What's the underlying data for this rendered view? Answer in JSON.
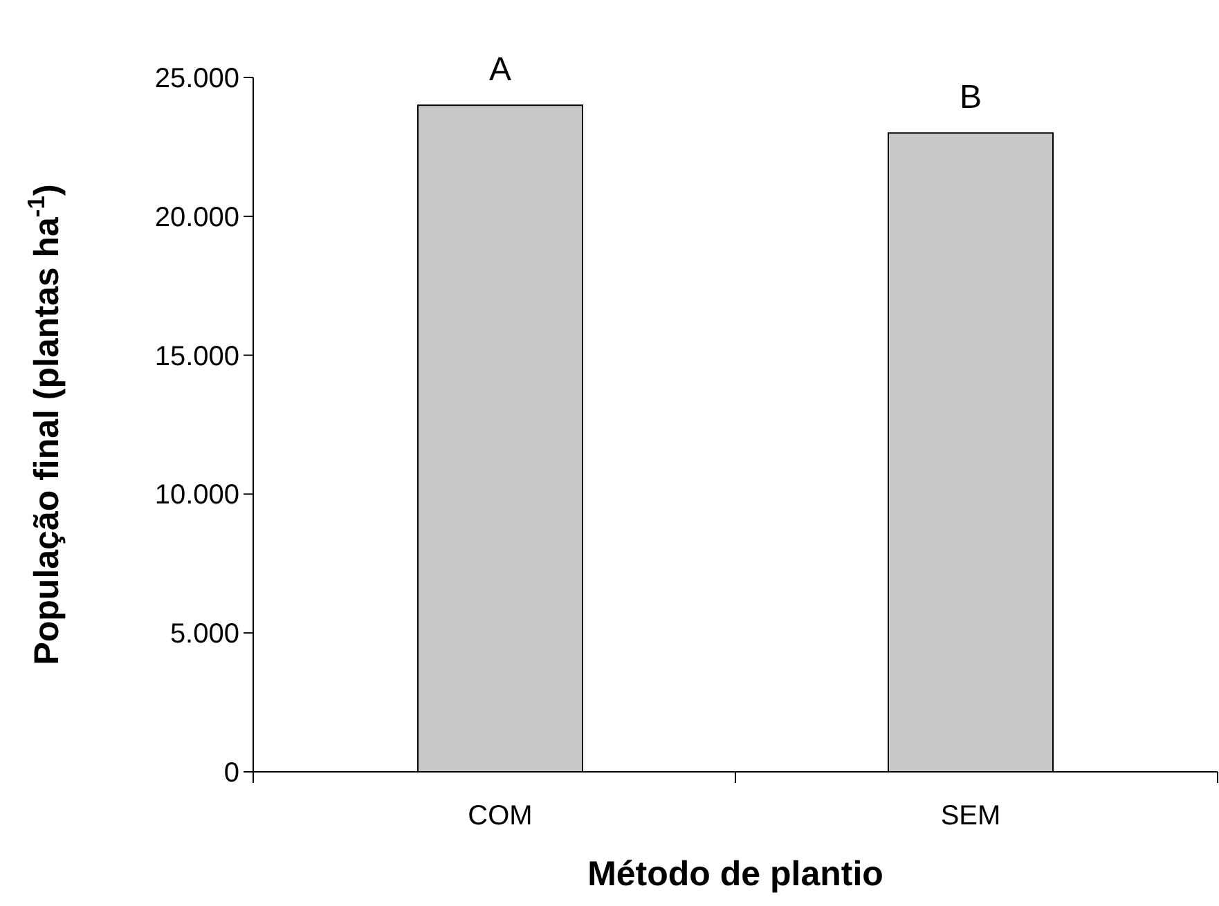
{
  "chart_data": {
    "type": "bar",
    "xlabel": "Método de plantio",
    "ylabel": "População final (plantas ha$^{-1}$)",
    "categories": [
      "COM",
      "SEM"
    ],
    "values": [
      24000,
      23000
    ],
    "color": "#c8c8c8",
    "ylim": [
      0,
      25000
    ],
    "yticks": [
      {
        "value": 0,
        "label": "0"
      },
      {
        "value": 5000,
        "label": "5.000"
      },
      {
        "value": 10000,
        "label": "10.000"
      },
      {
        "value": 15000,
        "label": "15.000"
      },
      {
        "value": 20000,
        "label": "20.000"
      },
      {
        "value": 25000,
        "label": "25.000"
      }
    ],
    "grid": false,
    "annotations": [
      {
        "text": "A",
        "x": "COM",
        "y": 24000
      },
      {
        "text": "B",
        "x": "SEM",
        "y": 23000
      }
    ]
  }
}
